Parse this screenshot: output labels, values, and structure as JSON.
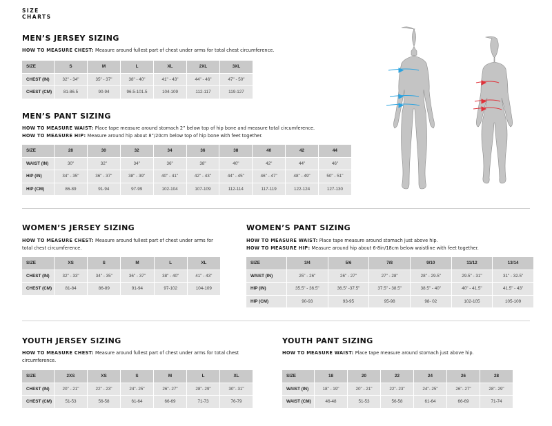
{
  "brand": {
    "line1": "SIZE",
    "line2": "CHARTS"
  },
  "colors": {
    "header_row": "#c9c9c9",
    "body_row": "#e5e5e5",
    "men_arrows": "#2aa3e0",
    "women_arrows": "#e0323a",
    "figure": "#c4c4c4"
  },
  "figures": [
    {
      "name": "male-body-figure",
      "arrows": 3
    },
    {
      "name": "female-body-figure",
      "arrows": 3
    }
  ],
  "sections": {
    "mens_jersey": {
      "title": "MEN’S JERSEY SIZING",
      "instructions": [
        {
          "label": "HOW TO MEASURE CHEST:",
          "text": "Measure around fullest part of chest under arms for total chest circumference."
        }
      ],
      "table": {
        "header": [
          "SIZE",
          "S",
          "M",
          "L",
          "XL",
          "2XL",
          "3XL"
        ],
        "rows": [
          [
            "CHEST (IN)",
            "32\" - 34\"",
            "35\" - 37\"",
            "38\" - 40\"",
            "41\" - 43\"",
            "44\" - 46\"",
            "47\" - 50\""
          ],
          [
            "CHEST (CM)",
            "81-86.5",
            "90-94",
            "96.5-101.5",
            "104-109",
            "112-117",
            "119-127"
          ]
        ]
      }
    },
    "mens_pant": {
      "title": "MEN’S PANT SIZING",
      "instructions": [
        {
          "label": "HOW TO MEASURE WAIST:",
          "text": "Place tape measure around stomach 2” below top of hip bone and measure total circumference."
        },
        {
          "label": "HOW TO MEASURE HIP:",
          "text": "Measure around hip about 8”/20cm below top of hip bone with feet together."
        }
      ],
      "table": {
        "header": [
          "SIZE",
          "28",
          "30",
          "32",
          "34",
          "36",
          "38",
          "40",
          "42",
          "44"
        ],
        "rows": [
          [
            "WAIST (IN)",
            "30\"",
            "32\"",
            "34\"",
            "36\"",
            "38\"",
            "40\"",
            "42\"",
            "44\"",
            "46\""
          ],
          [
            "HIP (IN)",
            "34\" - 35\"",
            "36\" - 37\"",
            "38\" - 39\"",
            "40\" - 41\"",
            "42\" - 43\"",
            "44\" - 45\"",
            "46\" - 47\"",
            "48\" - 49\"",
            "50\" - 51\""
          ],
          [
            "HIP (CM)",
            "86-89",
            "91-94",
            "97-99",
            "102-104",
            "107-109",
            "112-114",
            "117-119",
            "122-124",
            "127-130"
          ]
        ]
      }
    },
    "womens_jersey": {
      "title": "WOMEN’S JERSEY SIZING",
      "instructions": [
        {
          "label": "HOW TO MEASURE CHEST:",
          "text": "Measure around fullest part of chest under arms for total chest circumference."
        }
      ],
      "table": {
        "header": [
          "SIZE",
          "XS",
          "S",
          "M",
          "L",
          "XL"
        ],
        "rows": [
          [
            "CHEST (IN)",
            "32\" - 33\"",
            "34\" - 35\"",
            "36\" - 37\"",
            "38\" - 40\"",
            "41\" - 43\""
          ],
          [
            "CHEST (CM)",
            "81-84",
            "86-89",
            "91-94",
            "97-102",
            "104-109"
          ]
        ]
      }
    },
    "womens_pant": {
      "title": "WOMEN’S PANT SIZING",
      "instructions": [
        {
          "label": "HOW TO MEASURE WAIST:",
          "text": "Place tape measure around stomach just above hip."
        },
        {
          "label": "HOW TO MEASURE HIP:",
          "text": "Measure around hip about 6-8in/18cm below waistline with feet together."
        }
      ],
      "table": {
        "header": [
          "SIZE",
          "3/4",
          "5/6",
          "7/8",
          "9/10",
          "11/12",
          "13/14"
        ],
        "rows": [
          [
            "WAIST (IN)",
            "25\" - 26\"",
            "26\" - 27\"",
            "27\" - 28\"",
            "28\" - 29.5\"",
            "29.5\" - 31\"",
            "31\" - 32.5\""
          ],
          [
            "HIP (IN)",
            "35.5\" - 36.5\"",
            "36.5\" -37.5\"",
            "37.5\" - 38.5\"",
            "38.5\" - 40\"",
            "40\" - 41.5\"",
            "41.5\" - 43\""
          ],
          [
            "HIP (CM)",
            "90-93",
            "93-95",
            "95-98",
            "98- 02",
            "102-105",
            "105-109"
          ]
        ]
      }
    },
    "youth_jersey": {
      "title": "YOUTH JERSEY SIZING",
      "instructions": [
        {
          "label": "HOW TO MEASURE CHEST:",
          "text": "Measure around fullest part of chest under arms for total chest circumference."
        }
      ],
      "table": {
        "header": [
          "SIZE",
          "2XS",
          "XS",
          "S",
          "M",
          "L",
          "XL"
        ],
        "rows": [
          [
            "CHEST (IN)",
            "20\" - 21\"",
            "22\" - 23\"",
            "24\"- 25\"",
            "26\"- 27\"",
            "28\"- 29\"",
            "30\"- 31\""
          ],
          [
            "CHEST (CM)",
            "51-53",
            "56-58",
            "61-64",
            "66-69",
            "71-73",
            "76-79"
          ]
        ]
      }
    },
    "youth_pant": {
      "title": "YOUTH PANT SIZING",
      "instructions": [
        {
          "label": "HOW TO MEASURE WAIST:",
          "text": "Place tape measure around stomach just above hip."
        }
      ],
      "table": {
        "header": [
          "SIZE",
          "18",
          "20",
          "22",
          "24",
          "26",
          "28"
        ],
        "rows": [
          [
            "WAIST (IN)",
            "18\" - 19\"",
            "20\" - 21\"",
            "22\"- 23\"",
            "24\"- 25\"",
            "26\"- 27\"",
            "28\"- 29\""
          ],
          [
            "WAIST (CM)",
            "46-48",
            "51-53",
            "56-58",
            "61-64",
            "66-69",
            "71-74"
          ]
        ]
      }
    }
  }
}
